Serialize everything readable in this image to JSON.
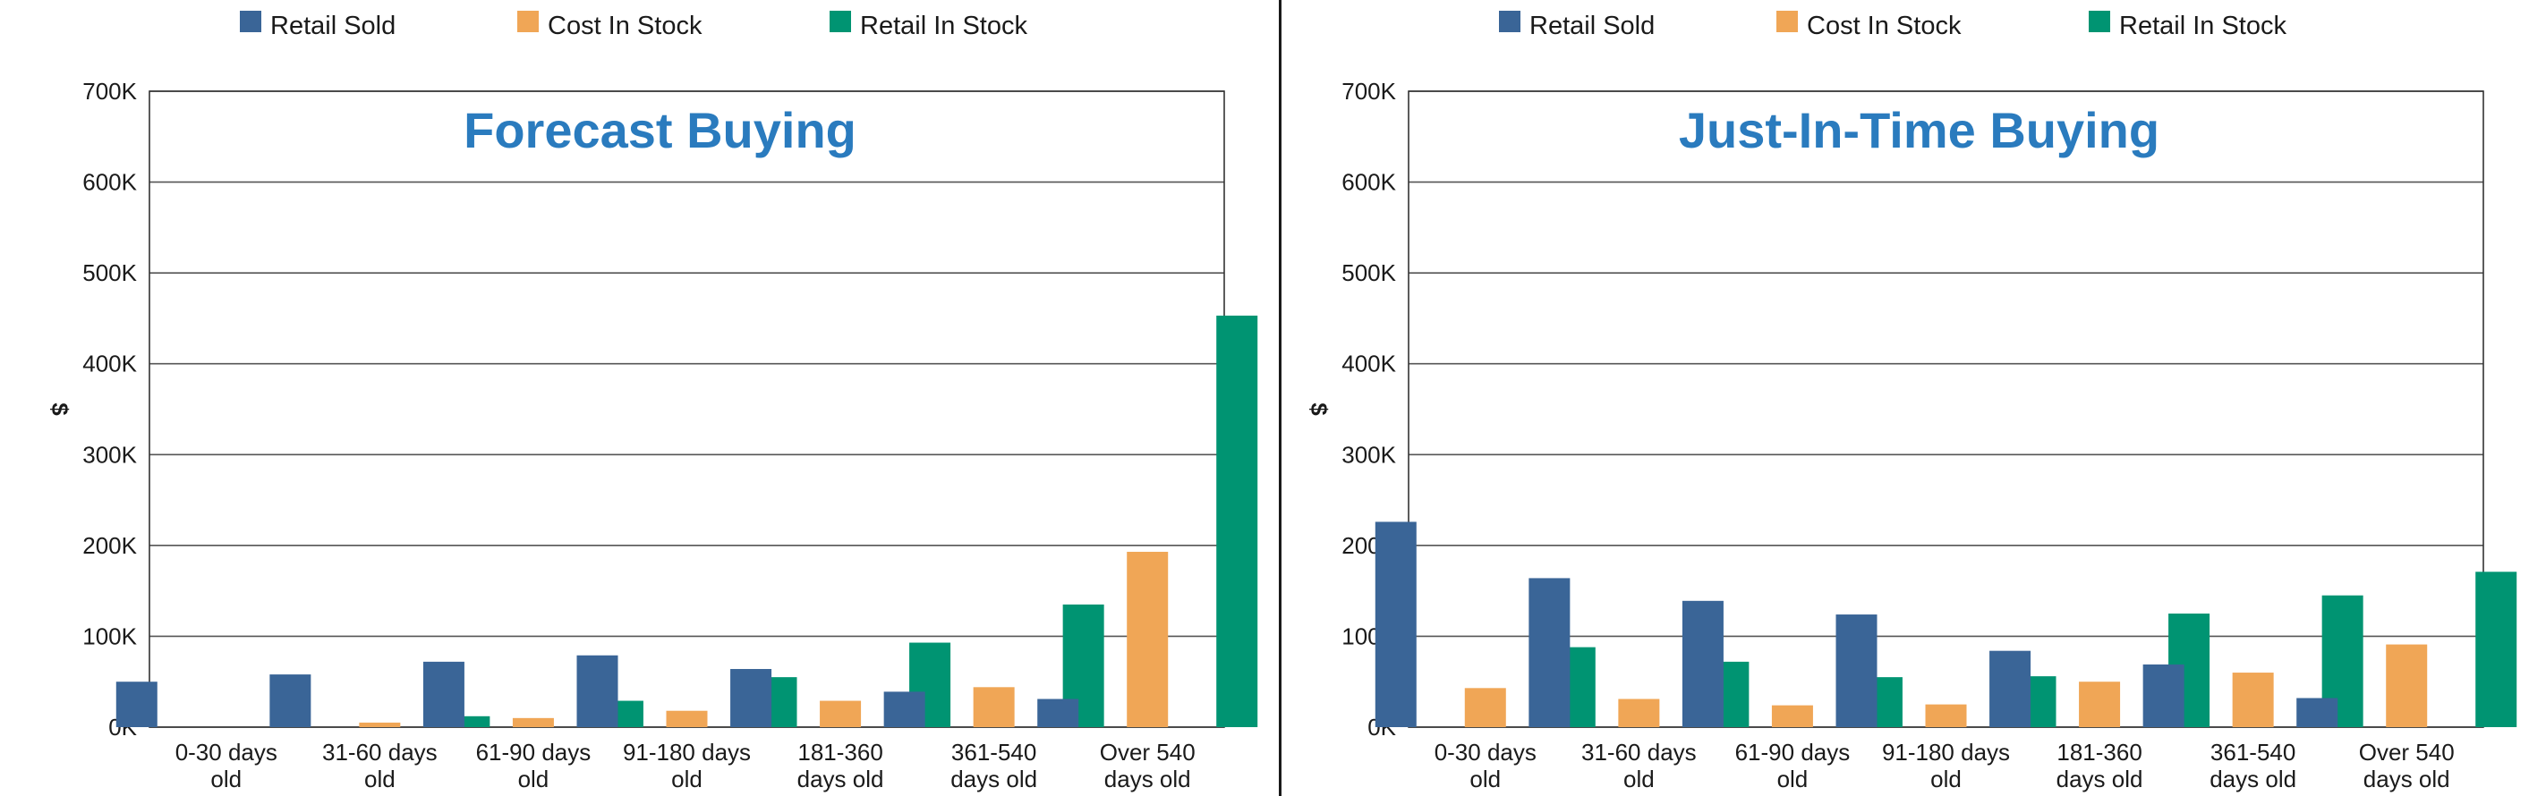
{
  "colors": {
    "Retail Sold": "#3a6597",
    "Cost In Stock": "#f0a656",
    "Retail In Stock": "#009472",
    "title": "#2a7bbe",
    "grid": "#555555"
  },
  "chart_data": [
    {
      "type": "bar",
      "title": "Forecast Buying",
      "ylabel": "$",
      "ylim": [
        0,
        700000
      ],
      "yticks": [
        "0K",
        "100K",
        "200K",
        "300K",
        "400K",
        "500K",
        "600K",
        "700K"
      ],
      "categories": [
        [
          "0-30 days",
          "old"
        ],
        [
          "31-60 days",
          "old"
        ],
        [
          "61-90 days",
          "old"
        ],
        [
          "91-180 days",
          "old"
        ],
        [
          "181-360",
          "days old"
        ],
        [
          "361-540",
          "days old"
        ],
        [
          "Over 540",
          "days old"
        ]
      ],
      "legend": "top",
      "grid": true,
      "series": [
        {
          "name": "Retail Sold",
          "values": [
            50000,
            58000,
            72000,
            79000,
            64000,
            39000,
            31000
          ]
        },
        {
          "name": "Cost In Stock",
          "values": [
            0,
            5000,
            10000,
            18000,
            29000,
            44000,
            193000
          ]
        },
        {
          "name": "Retail In Stock",
          "values": [
            0,
            12000,
            29000,
            55000,
            93000,
            135000,
            453000
          ]
        }
      ]
    },
    {
      "type": "bar",
      "title": "Just-In-Time Buying",
      "ylabel": "$",
      "ylim": [
        0,
        700000
      ],
      "yticks": [
        "0K",
        "100K",
        "200K",
        "300K",
        "400K",
        "500K",
        "600K",
        "700K"
      ],
      "categories": [
        [
          "0-30 days",
          "old"
        ],
        [
          "31-60 days",
          "old"
        ],
        [
          "61-90 days",
          "old"
        ],
        [
          "91-180 days",
          "old"
        ],
        [
          "181-360",
          "days old"
        ],
        [
          "361-540",
          "days old"
        ],
        [
          "Over 540",
          "days old"
        ]
      ],
      "legend": "top",
      "grid": true,
      "series": [
        {
          "name": "Retail Sold",
          "values": [
            226000,
            164000,
            139000,
            124000,
            84000,
            69000,
            32000
          ]
        },
        {
          "name": "Cost In Stock",
          "values": [
            43000,
            31000,
            24000,
            25000,
            50000,
            60000,
            91000
          ]
        },
        {
          "name": "Retail In Stock",
          "values": [
            88000,
            72000,
            55000,
            56000,
            125000,
            145000,
            171000
          ]
        }
      ]
    }
  ]
}
